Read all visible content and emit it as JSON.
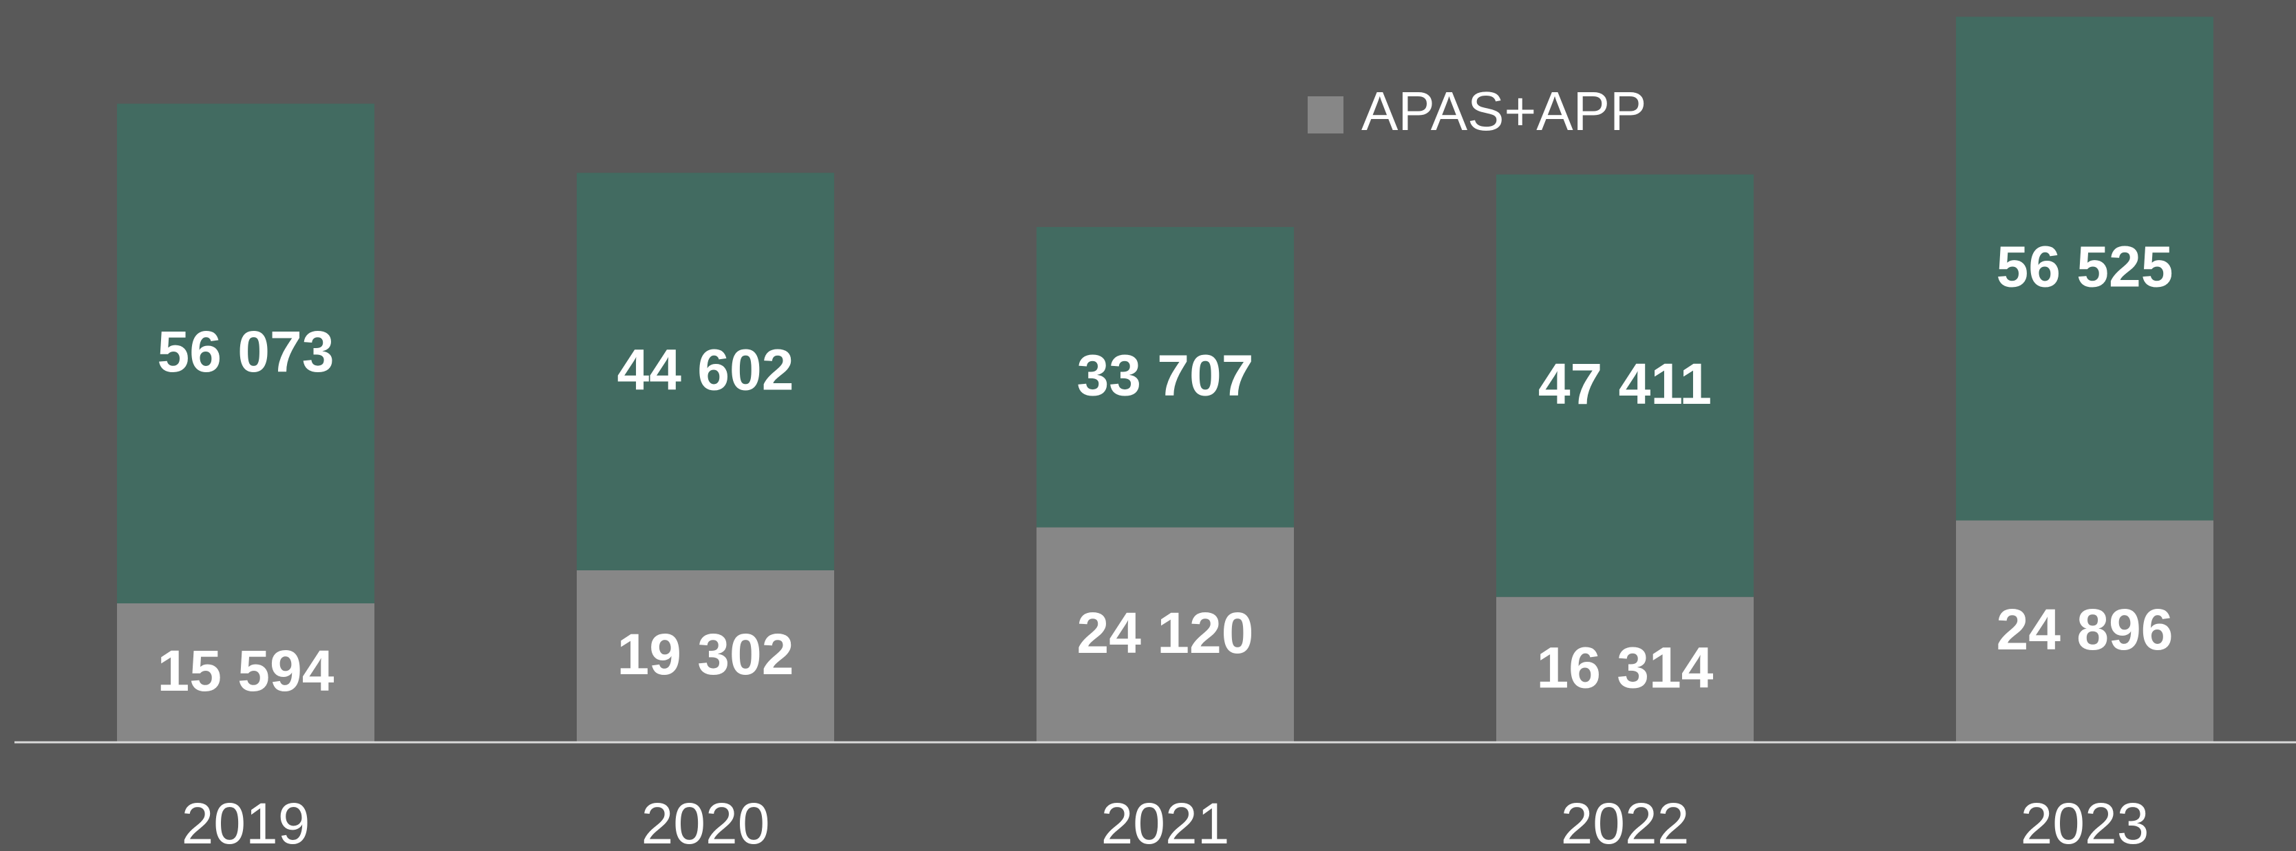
{
  "chart_data": {
    "type": "stacked_bar",
    "categories": [
      "2019",
      "2020",
      "2021",
      "2022",
      "2023"
    ],
    "series": [
      {
        "name": "APAS+APP",
        "color": "#878787",
        "values": [
          15594,
          19302,
          24120,
          16314,
          24896
        ],
        "value_labels": [
          "15 594",
          "19 302",
          "24 120",
          "16 314",
          "24 896"
        ]
      },
      {
        "color": "#426b61",
        "values": [
          56073,
          44602,
          33707,
          47411,
          56525
        ],
        "value_labels": [
          "56 073",
          "44 602",
          "33 707",
          "47 411",
          "56 525"
        ]
      }
    ],
    "ylim": [
      0,
      83300
    ],
    "legend": "top"
  }
}
